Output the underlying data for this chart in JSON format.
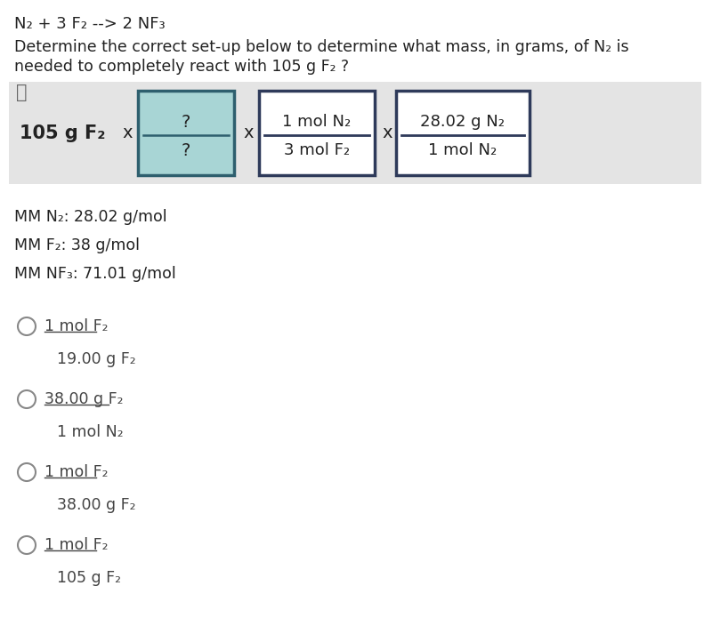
{
  "background_color": "#ffffff",
  "setup_bg": "#e4e4e4",
  "teal_box_bg": "#a8d5d5",
  "teal_box_border": "#2e5f6e",
  "white_box_border": "#2e3a5a",
  "title_equation": "N₂ + 3 F₂ --> 2 NF₃",
  "question_line1": "Determine the correct set-up below to determine what mass, in grams, of N₂ is",
  "question_line2": "needed to completely react with 105 g F₂ ?",
  "starting_material": "105 g F₂",
  "fraction1_top": "?",
  "fraction1_bot": "?",
  "fraction2_top": "1 mol N₂",
  "fraction2_bot": "3 mol F₂",
  "fraction3_top": "28.02 g N₂",
  "fraction3_bot": "1 mol N₂",
  "mm_lines": [
    "MM N₂: 28.02 g/mol",
    "MM F₂: 38 g/mol",
    "MM NF₃: 71.01 g/mol"
  ],
  "options": [
    {
      "top": "1 mol F₂",
      "bot": "19.00 g F₂"
    },
    {
      "top": "38.00 g F₂",
      "bot": "1 mol N₂"
    },
    {
      "top": "1 mol F₂",
      "bot": "38.00 g F₂"
    },
    {
      "top": "1 mol F₂",
      "bot": "105 g F₂"
    }
  ],
  "text_color": "#222222",
  "circle_color": "#888888",
  "option_color": "#444444"
}
